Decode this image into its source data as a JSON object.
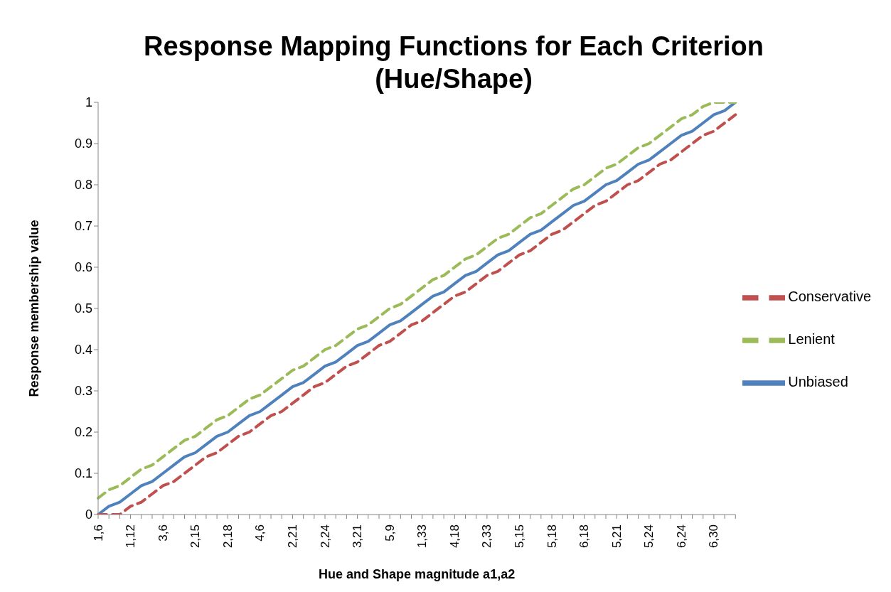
{
  "chart_data": {
    "type": "line",
    "title": "Response Mapping Functions for Each Criterion (Hue/Shape)",
    "xlabel": "Hue and Shape magnitude a1,a2",
    "ylabel": "Response membership value",
    "categories": [
      "1,6",
      null,
      null,
      "1,12",
      null,
      null,
      "3,6",
      null,
      null,
      "2,15",
      null,
      null,
      "2,18",
      null,
      null,
      "4,6",
      null,
      null,
      "2,21",
      null,
      null,
      "2,24",
      null,
      null,
      "3,21",
      null,
      null,
      "5,9",
      null,
      null,
      "1,33",
      null,
      null,
      "4,18",
      null,
      null,
      "2,33",
      null,
      null,
      "5,15",
      null,
      null,
      "5,18",
      null,
      null,
      "6,18",
      null,
      null,
      "5,21",
      null,
      null,
      "5,24",
      null,
      null,
      "6,24",
      null,
      null,
      "6,30",
      null,
      null
    ],
    "series": [
      {
        "name": "Unbiased",
        "color": "#4f81bd",
        "line_style": "solid",
        "values": [
          0,
          0.02,
          0.03,
          0.05,
          0.07,
          0.08,
          0.1,
          0.12,
          0.14,
          0.15,
          0.17,
          0.19,
          0.2,
          0.22,
          0.24,
          0.25,
          0.27,
          0.29,
          0.31,
          0.32,
          0.34,
          0.36,
          0.37,
          0.39,
          0.41,
          0.42,
          0.44,
          0.46,
          0.47,
          0.49,
          0.51,
          0.53,
          0.54,
          0.56,
          0.58,
          0.59,
          0.61,
          0.63,
          0.64,
          0.66,
          0.68,
          0.69,
          0.71,
          0.73,
          0.75,
          0.76,
          0.78,
          0.8,
          0.81,
          0.83,
          0.85,
          0.86,
          0.88,
          0.9,
          0.92,
          0.93,
          0.95,
          0.97,
          0.98,
          1
        ]
      },
      {
        "name": "Conservative",
        "color": "#c0504d",
        "line_style": "dashed",
        "values": [
          0,
          0,
          0,
          0.02,
          0.03,
          0.05,
          0.07,
          0.08,
          0.1,
          0.12,
          0.14,
          0.15,
          0.17,
          0.19,
          0.2,
          0.22,
          0.24,
          0.25,
          0.27,
          0.29,
          0.31,
          0.32,
          0.34,
          0.36,
          0.37,
          0.39,
          0.41,
          0.42,
          0.44,
          0.46,
          0.47,
          0.49,
          0.51,
          0.53,
          0.54,
          0.56,
          0.58,
          0.59,
          0.61,
          0.63,
          0.64,
          0.66,
          0.68,
          0.69,
          0.71,
          0.73,
          0.75,
          0.76,
          0.78,
          0.8,
          0.81,
          0.83,
          0.85,
          0.86,
          0.88,
          0.9,
          0.92,
          0.93,
          0.95,
          0.97
        ]
      },
      {
        "name": "Lenient",
        "color": "#9bbb59",
        "line_style": "dashed",
        "values": [
          0.04,
          0.06,
          0.07,
          0.09,
          0.11,
          0.12,
          0.14,
          0.16,
          0.18,
          0.19,
          0.21,
          0.23,
          0.24,
          0.26,
          0.28,
          0.29,
          0.31,
          0.33,
          0.35,
          0.36,
          0.38,
          0.4,
          0.41,
          0.43,
          0.45,
          0.46,
          0.48,
          0.5,
          0.51,
          0.53,
          0.55,
          0.57,
          0.58,
          0.6,
          0.62,
          0.63,
          0.65,
          0.67,
          0.68,
          0.7,
          0.72,
          0.73,
          0.75,
          0.77,
          0.79,
          0.8,
          0.82,
          0.84,
          0.85,
          0.87,
          0.89,
          0.9,
          0.92,
          0.94,
          0.96,
          0.97,
          0.99,
          1,
          1,
          1
        ]
      }
    ],
    "ylim": [
      0,
      1
    ],
    "yticks": [
      0,
      0.1,
      0.2,
      0.3,
      0.4,
      0.5,
      0.6,
      0.7,
      0.8,
      0.9,
      1
    ],
    "grid": false,
    "legend": "right",
    "marker": "none"
  }
}
